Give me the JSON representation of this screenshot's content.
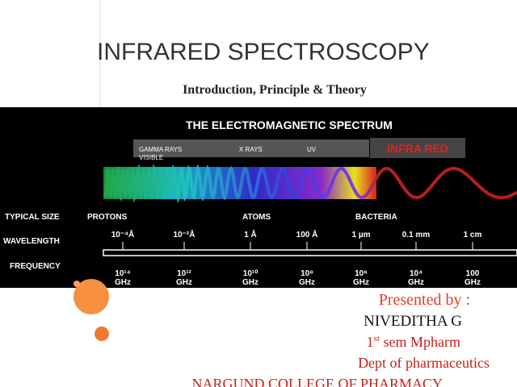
{
  "header": {
    "title": "INFRARED SPECTROSCOPY",
    "subtitle": "Introduction, Principle & Theory"
  },
  "spectrum": {
    "title": "THE ELECTROMAGNETIC SPECTRUM",
    "bands": [
      "GAMMA RAYS",
      "X RAYS",
      "UV",
      "VISIBLE"
    ],
    "highlight": "INFRA RED",
    "row_labels": [
      "TYPICAL SIZE",
      "WAVELENGTH",
      "FREQUENCY"
    ],
    "sizes": [
      "PROTONS",
      "ATOMS",
      "BACTERIA"
    ],
    "wavelengths": [
      "10⁻⁴Å",
      "10⁻²Å",
      "1 Å",
      "100 Å",
      "1 µm",
      "0.1 mm",
      "1 cm"
    ],
    "frequencies": [
      {
        "value": "10¹⁴",
        "unit": "GHz"
      },
      {
        "value": "10¹²",
        "unit": "GHz"
      },
      {
        "value": "10¹⁰",
        "unit": "GHz"
      },
      {
        "value": "10⁸",
        "unit": "GHz"
      },
      {
        "value": "10⁶",
        "unit": "GHz"
      },
      {
        "value": "10⁴",
        "unit": "GHz"
      },
      {
        "value": "100",
        "unit": "GHz"
      }
    ]
  },
  "presenter": {
    "intro": "Presented by :",
    "name": "NIVEDITHA G",
    "semester": {
      "number": "1",
      "suffix": "st",
      "rest": " sem Mpharm"
    },
    "department": "Dept of pharmaceutics",
    "college": "NARGUND COLLEGE OF PHARMACY"
  }
}
